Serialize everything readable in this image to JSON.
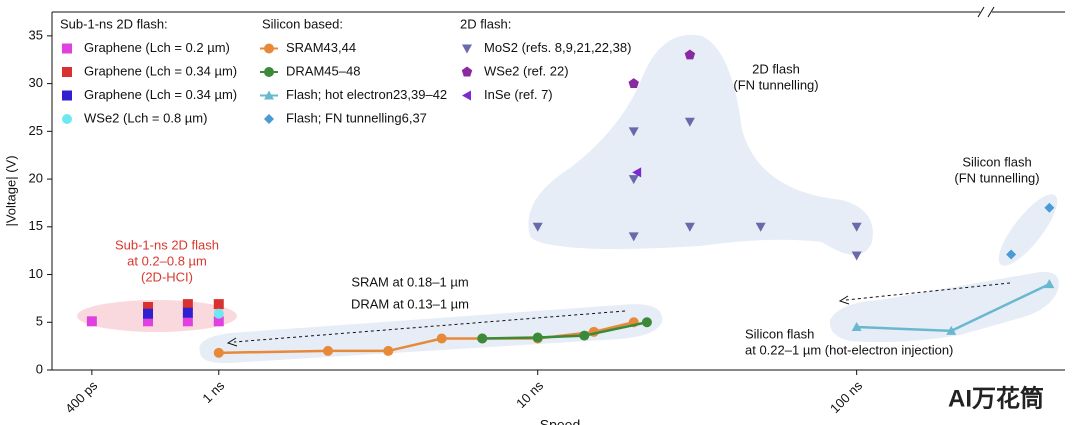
{
  "chart_data": {
    "type": "scatter",
    "x_label": "Speed",
    "y_label": "|Voltage| (V)",
    "xscale": "log",
    "xlim": [
      0.3,
      450
    ],
    "xticks": [
      {
        "value": 0.4,
        "label": "400 ps"
      },
      {
        "value": 1,
        "label": "1 ns"
      },
      {
        "value": 10,
        "label": "10 ns"
      },
      {
        "value": 100,
        "label": "100 ns"
      }
    ],
    "ylim": [
      0,
      37.5
    ],
    "yticks": [
      0,
      5,
      10,
      15,
      20,
      25,
      30,
      35
    ],
    "groups": [
      {
        "title": "Sub-1-ns 2D flash:",
        "series": [
          {
            "name": "Graphene (Lch = 0.2 µm)",
            "color": "#e040e0",
            "marker": "square",
            "line": false,
            "x": [
              0.4,
              0.6,
              0.8,
              1
            ],
            "values": [
              5.1,
              5.1,
              5.1,
              5.1
            ]
          },
          {
            "name": "Graphene (Lch = 0.34 µm)",
            "color": "#d93030",
            "marker": "square",
            "line": false,
            "x": [
              0.6,
              0.8,
              1
            ],
            "values": [
              6.6,
              6.9,
              6.9
            ]
          },
          {
            "name": "Graphene (Lch = 0.34 µm)",
            "color": "#3020d0",
            "marker": "square",
            "line": false,
            "x": [
              0.6,
              0.8
            ],
            "values": [
              5.9,
              6.0
            ]
          },
          {
            "name": "WSe2 (Lch = 0.8 µm)",
            "color": "#6ee8f0",
            "marker": "circle",
            "line": false,
            "x": [
              1
            ],
            "values": [
              5.9
            ]
          }
        ]
      },
      {
        "title": "Silicon based:",
        "series": [
          {
            "name": "SRAM43,44",
            "color": "#e8893a",
            "marker": "circle",
            "line": true,
            "x": [
              1,
              2.2,
              3.4,
              5,
              6.7,
              10,
              15,
              20
            ],
            "values": [
              1.8,
              2.0,
              2.0,
              3.3,
              3.3,
              3.3,
              4.0,
              5.0
            ]
          },
          {
            "name": "DRAM45–48",
            "color": "#3a8a3a",
            "marker": "circle",
            "line": true,
            "x": [
              6.7,
              10,
              14,
              22
            ],
            "values": [
              3.3,
              3.4,
              3.6,
              5.0
            ]
          },
          {
            "name": "Flash; hot electron23,39–42",
            "color": "#6ab8d0",
            "marker": "triangle-up",
            "line": true,
            "x": [
              100,
              198,
              402
            ],
            "values": [
              4.5,
              4.1,
              9.0
            ]
          },
          {
            "name": "Flash; FN tunnelling6,37",
            "color": "#4a9ad4",
            "marker": "diamond",
            "line": false,
            "x": [
              305,
              402
            ],
            "values": [
              12.1,
              17.0
            ]
          }
        ]
      },
      {
        "title": "2D flash:",
        "series": [
          {
            "name": "MoS2 (refs. 8,9,21,22,38)",
            "color": "#6a6aaa",
            "marker": "triangle-down",
            "line": false,
            "x": [
              10,
              20,
              20,
              20,
              30,
              30,
              50,
              100,
              100
            ],
            "values": [
              15,
              20,
              25,
              14,
              15,
              26,
              15,
              15,
              12
            ]
          },
          {
            "name": "WSe2 (ref. 22)",
            "color": "#8a2aa0",
            "marker": "pentagon",
            "line": false,
            "x": [
              20,
              30
            ],
            "values": [
              30,
              33
            ]
          },
          {
            "name": "InSe (ref. 7)",
            "color": "#7a2ad0",
            "marker": "triangle-left",
            "line": false,
            "x": [
              20.5
            ],
            "values": [
              20.7
            ]
          }
        ]
      }
    ],
    "annotations": [
      {
        "lines": [
          "Sub-1-ns 2D flash",
          "at 0.2–0.8 µm",
          "(2D-HCI)"
        ],
        "color": "#d9382e"
      },
      {
        "lines": [
          "SRAM at 0.18–1 µm"
        ],
        "color": "#111111"
      },
      {
        "lines": [
          "DRAM at 0.13–1 µm"
        ],
        "color": "#111111"
      },
      {
        "lines": [
          "2D flash",
          "(FN tunnelling)"
        ],
        "color": "#111111"
      },
      {
        "lines": [
          "Silicon flash",
          "(FN tunnelling)"
        ],
        "color": "#111111"
      },
      {
        "lines": [
          "Silicon flash",
          "at 0.22–1 µm (hot-electron injection)"
        ],
        "color": "#111111"
      }
    ],
    "watermark": "AI万花筒"
  }
}
